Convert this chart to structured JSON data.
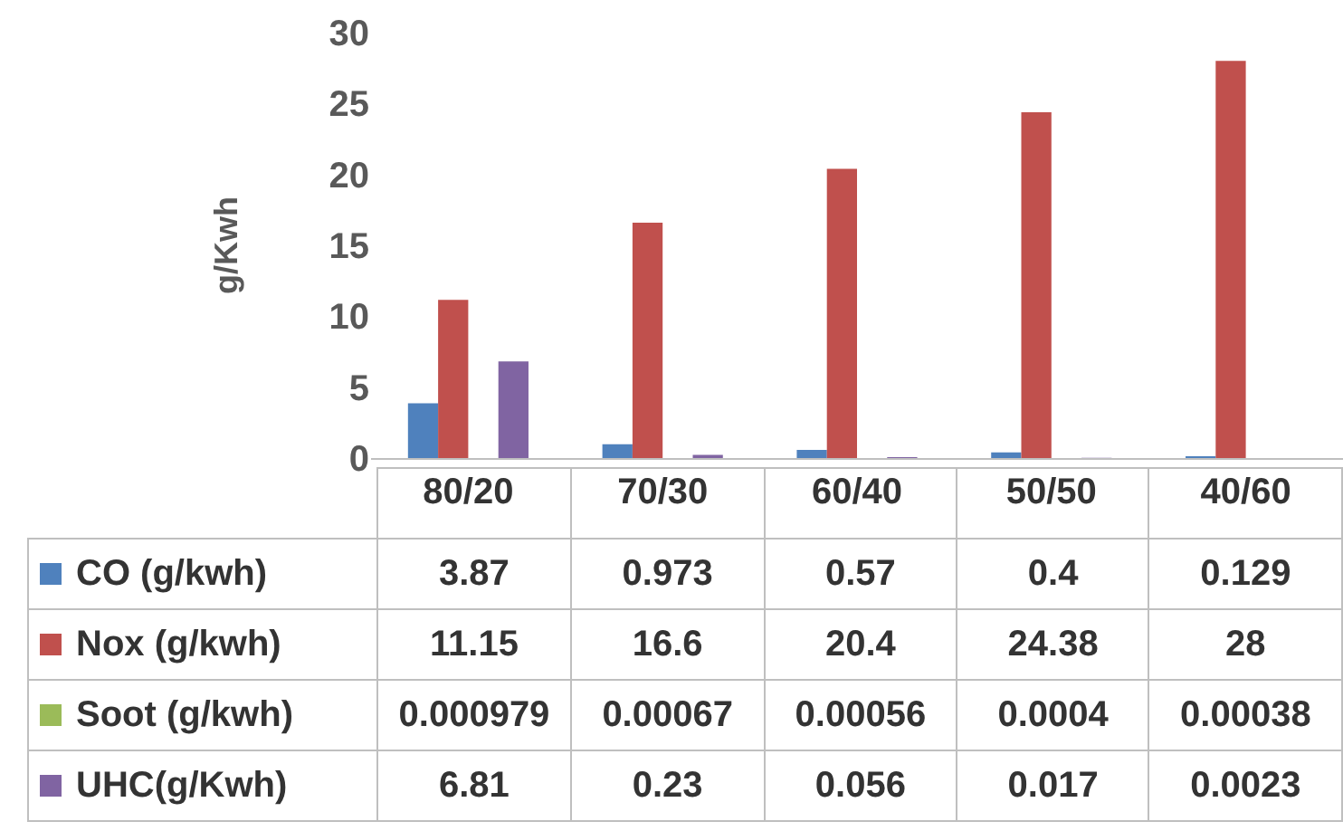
{
  "chart_data": {
    "type": "bar",
    "ylabel": "g/Kwh",
    "categories": [
      "80/20",
      "70/30",
      "60/40",
      "50/50",
      "40/60"
    ],
    "series": [
      {
        "name": "CO (g/kwh)",
        "color": "#4f81bd",
        "values": [
          3.87,
          0.973,
          0.57,
          0.4,
          0.129
        ]
      },
      {
        "name": "Nox (g/kwh)",
        "color": "#c0504d",
        "values": [
          11.15,
          16.6,
          20.4,
          24.38,
          28
        ]
      },
      {
        "name": "Soot (g/kwh)",
        "color": "#9bbb59",
        "values": [
          0.000979,
          0.00067,
          0.00056,
          0.0004,
          0.00038
        ]
      },
      {
        "name": "UHC(g/Kwh)",
        "color": "#8064a2",
        "values": [
          6.81,
          0.23,
          0.056,
          0.017,
          0.0023
        ]
      }
    ],
    "ylim": [
      0,
      30
    ],
    "yticks": [
      0,
      5,
      10,
      15,
      20,
      25,
      30
    ],
    "grid": false,
    "data_labels": true,
    "legend": "bottom"
  }
}
